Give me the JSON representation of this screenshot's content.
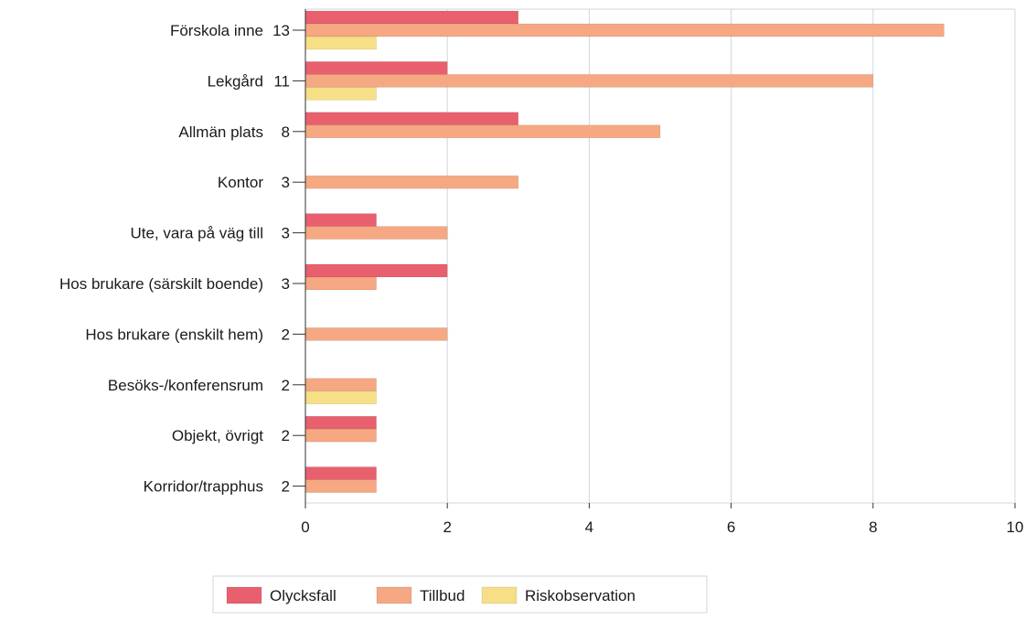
{
  "chart_data": {
    "type": "bar",
    "orientation": "horizontal",
    "categories": [
      "Förskola inne",
      "Lekgård",
      "Allmän plats",
      "Kontor",
      "Ute, vara på väg till",
      "Hos brukare (särskilt boende)",
      "Hos brukare (enskilt hem)",
      "Besöks-/konferensrum",
      "Objekt, övrigt",
      "Korridor/trapphus"
    ],
    "category_totals": [
      "13",
      "11",
      "8",
      "3",
      "3",
      "3",
      "2",
      "2",
      "2",
      "2"
    ],
    "series": [
      {
        "name": "Olycksfall",
        "color": "#e8606e",
        "values": [
          3,
          2,
          3,
          0,
          1,
          2,
          0,
          0,
          1,
          1
        ]
      },
      {
        "name": "Tillbud",
        "color": "#f5a882",
        "values": [
          9,
          8,
          5,
          3,
          2,
          1,
          2,
          1,
          1,
          1
        ]
      },
      {
        "name": "Riskobservation",
        "color": "#f6df86",
        "values": [
          1,
          1,
          0,
          0,
          0,
          0,
          0,
          1,
          0,
          0
        ]
      }
    ],
    "xlim": [
      0,
      10
    ],
    "xticks": [
      "0",
      "2",
      "4",
      "6",
      "8",
      "10"
    ],
    "xlabel": "",
    "ylabel": "",
    "grid": true,
    "legend_position": "bottom"
  }
}
